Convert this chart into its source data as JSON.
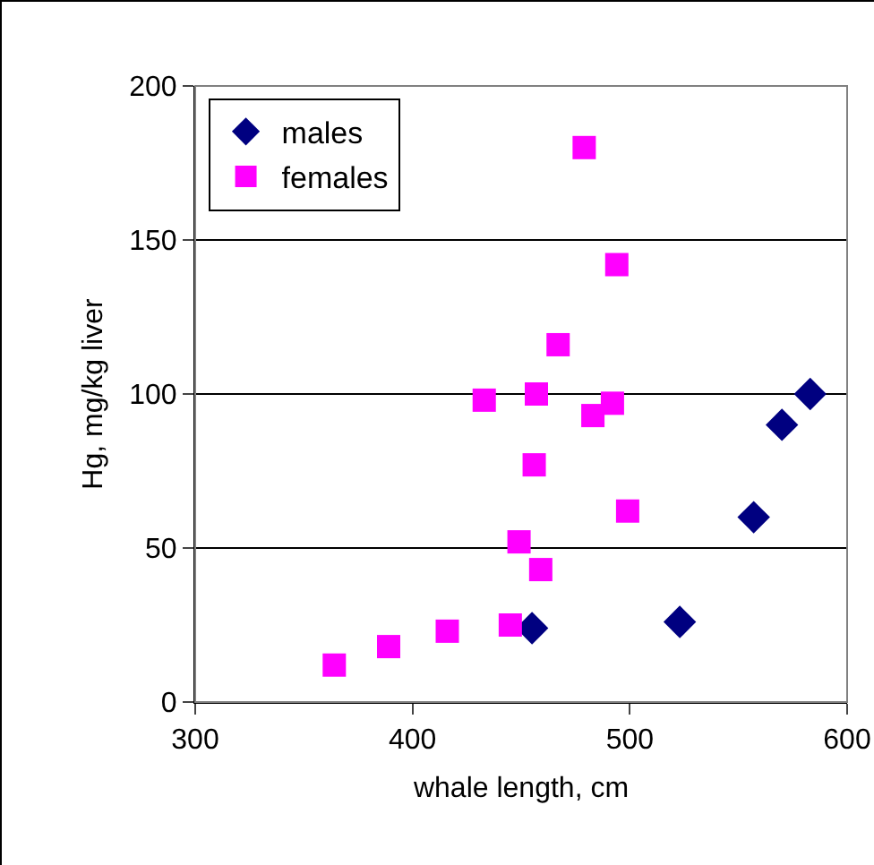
{
  "chart_data": {
    "type": "scatter",
    "xlabel": "whale length, cm",
    "ylabel": "Hg, mg/kg liver",
    "xlim": [
      300,
      600
    ],
    "xticks": [
      300,
      400,
      500,
      600
    ],
    "ylim": [
      0,
      200
    ],
    "yticks": [
      0,
      50,
      100,
      150,
      200
    ],
    "grid": "y",
    "legend": "top left",
    "series": [
      {
        "name": "males",
        "color": "#000080",
        "marker": "diamond",
        "x": [
          455,
          523,
          557,
          570,
          583
        ],
        "values": [
          24,
          26,
          60,
          90,
          100
        ]
      },
      {
        "name": "females",
        "color": "#ff00ff",
        "marker": "square",
        "x": [
          364,
          389,
          416,
          445,
          459,
          449,
          499,
          456,
          433,
          457,
          483,
          492,
          467,
          494,
          479
        ],
        "values": [
          12,
          18,
          23,
          25,
          43,
          52,
          62,
          77,
          98,
          100,
          93,
          97,
          116,
          142,
          180
        ]
      }
    ]
  }
}
